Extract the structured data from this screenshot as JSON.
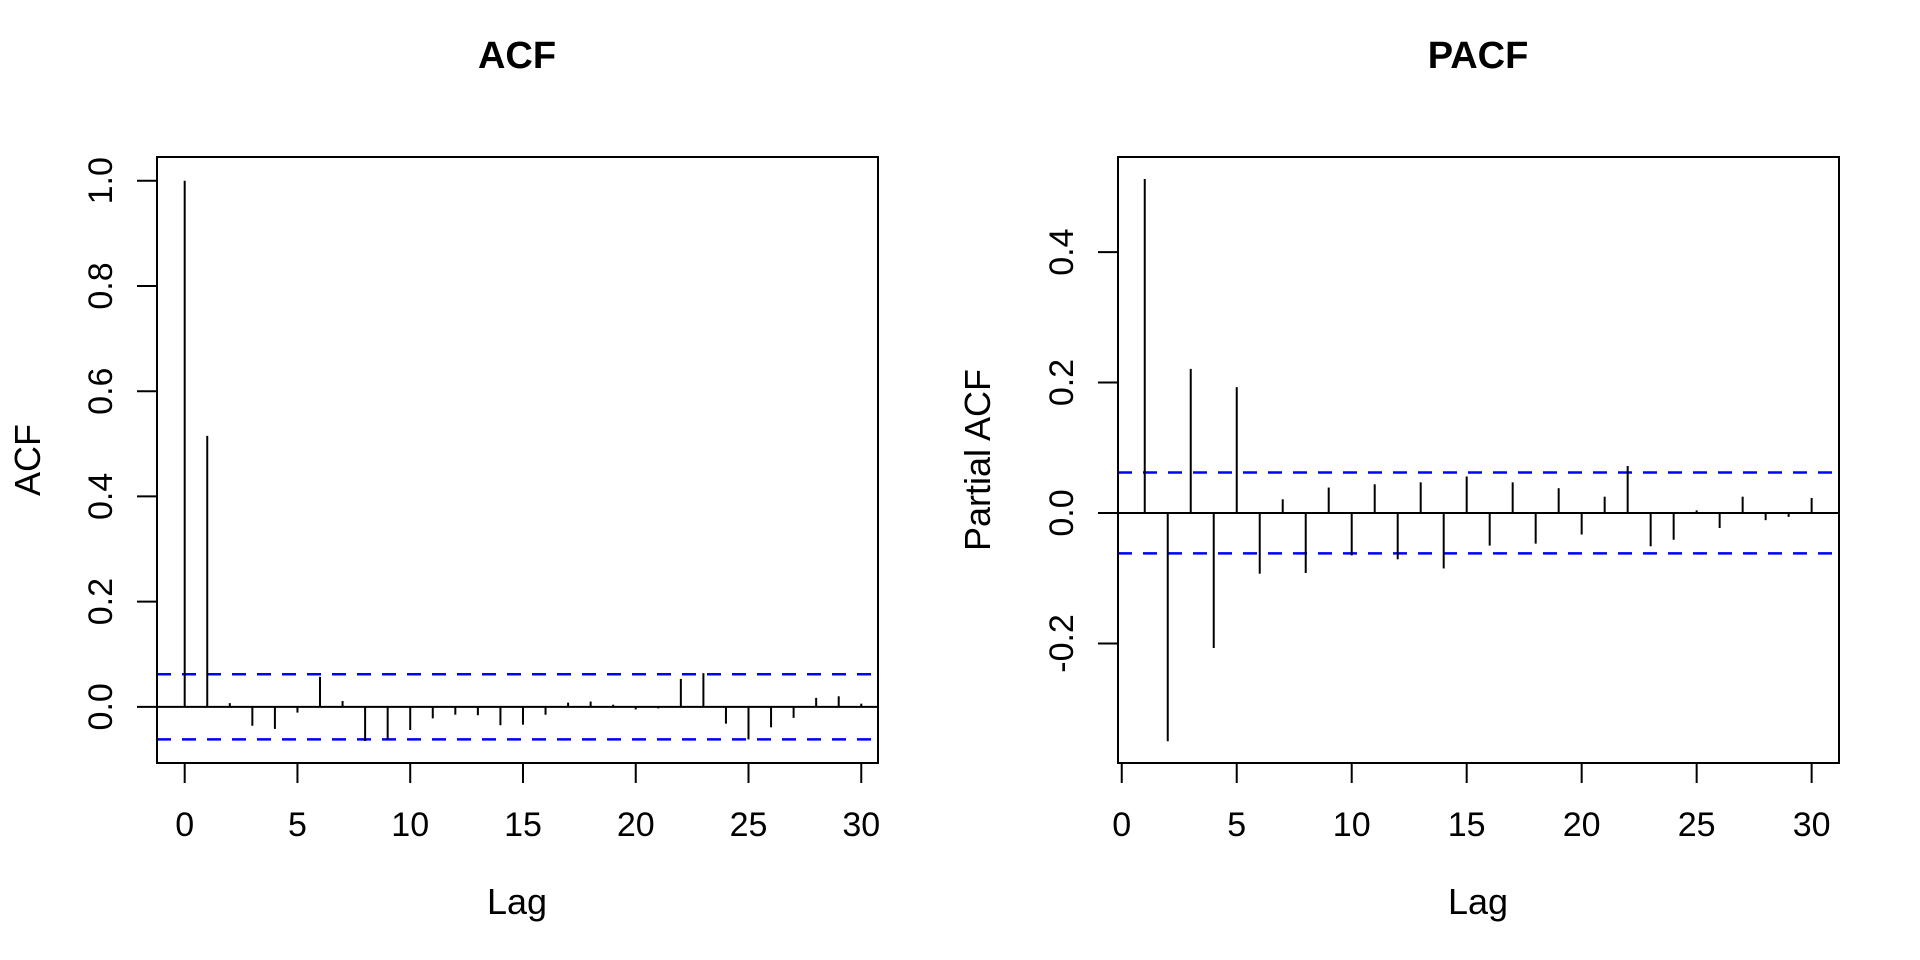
{
  "figure": {
    "background": "#ffffff",
    "line_color": "#000000",
    "band_color": "#0000FF"
  },
  "chart_data": [
    {
      "type": "bar",
      "subtype": "stem-acf",
      "title": "ACF",
      "xlabel": "Lag",
      "ylabel": "ACF",
      "x": [
        0,
        1,
        2,
        3,
        4,
        5,
        6,
        7,
        8,
        9,
        10,
        11,
        12,
        13,
        14,
        15,
        16,
        17,
        18,
        19,
        20,
        21,
        22,
        23,
        24,
        25,
        26,
        27,
        28,
        29,
        30
      ],
      "values": [
        1.0,
        0.515,
        0.007,
        -0.036,
        -0.042,
        -0.011,
        0.057,
        0.011,
        -0.065,
        -0.062,
        -0.044,
        -0.022,
        -0.015,
        -0.016,
        -0.035,
        -0.034,
        -0.015,
        0.008,
        0.01,
        0.004,
        -0.005,
        -0.003,
        0.053,
        0.064,
        -0.032,
        -0.062,
        -0.039,
        -0.021,
        0.017,
        0.02,
        0.006
      ],
      "confidence_band": 0.062,
      "band_style": "dashed",
      "band_color": "#0000FF",
      "line_color": "#000000",
      "grid": false,
      "legend": "none",
      "xlim": [
        -1.228,
        30.742
      ],
      "ylim": [
        -0.1068,
        1.0452
      ],
      "x_tick_values": [
        0,
        5,
        10,
        15,
        20,
        25,
        30
      ],
      "x_tick_labels": [
        "0",
        "5",
        "10",
        "15",
        "20",
        "25",
        "30"
      ],
      "y_tick_values": [
        0.0,
        0.2,
        0.4,
        0.6,
        0.8,
        1.0
      ],
      "y_tick_labels": [
        "0.0",
        "0.2",
        "0.4",
        "0.6",
        "0.8",
        "1.0"
      ]
    },
    {
      "type": "bar",
      "subtype": "stem-pacf",
      "title": "PACF",
      "xlabel": "Lag",
      "ylabel": "Partial ACF",
      "x": [
        1,
        2,
        3,
        4,
        5,
        6,
        7,
        8,
        9,
        10,
        11,
        12,
        13,
        14,
        15,
        16,
        17,
        18,
        19,
        20,
        21,
        22,
        23,
        24,
        25,
        26,
        27,
        28,
        29,
        30
      ],
      "values": [
        0.512,
        -0.35,
        0.221,
        -0.207,
        0.193,
        -0.093,
        0.021,
        -0.092,
        0.039,
        -0.065,
        0.044,
        -0.071,
        0.047,
        -0.085,
        0.056,
        -0.05,
        0.047,
        -0.047,
        0.038,
        -0.033,
        0.025,
        0.072,
        -0.051,
        -0.041,
        0.004,
        -0.023,
        0.025,
        -0.011,
        -0.006,
        0.023
      ],
      "confidence_band": 0.062,
      "band_style": "dashed",
      "band_color": "#0000FF",
      "line_color": "#000000",
      "grid": false,
      "legend": "none",
      "xlim": [
        -0.163,
        31.19
      ],
      "ylim": [
        -0.3833,
        0.5458
      ],
      "x_tick_values": [
        0,
        5,
        10,
        15,
        20,
        25,
        30
      ],
      "x_tick_labels": [
        "0",
        "5",
        "10",
        "15",
        "20",
        "25",
        "30"
      ],
      "y_tick_values": [
        -0.2,
        0.0,
        0.2,
        0.4
      ],
      "y_tick_labels": [
        "-0.2",
        "0.0",
        "0.2",
        "0.4"
      ]
    }
  ]
}
